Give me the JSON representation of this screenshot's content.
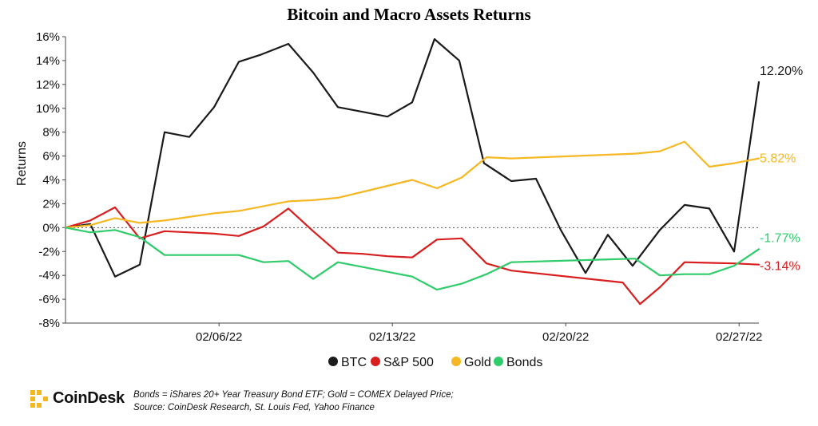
{
  "chart_data": {
    "type": "line",
    "title": "Bitcoin and Macro Assets Returns",
    "xlabel": "",
    "ylabel": "Returns",
    "ylim": [
      -8,
      16
    ],
    "y_unit": "%",
    "y_ticks": [
      "16%",
      "14%",
      "12%",
      "10%",
      "8%",
      "6%",
      "4%",
      "2%",
      "0%",
      "-2%",
      "-4%",
      "-6%",
      "-8%"
    ],
    "x_ticks": [
      "02/06/22",
      "02/13/22",
      "02/20/22",
      "02/27/22"
    ],
    "x_tick_positions": [
      6.2,
      13.2,
      20.2,
      27.2
    ],
    "xlim": [
      0,
      28
    ],
    "zero_line": "dotted",
    "legend_position": "bottom-center",
    "series": [
      {
        "name": "BTC",
        "color": "#1a1a1a",
        "end_label": "12.20%",
        "x": [
          0,
          1,
          2,
          3,
          4,
          5,
          6,
          7,
          7.9,
          9,
          10,
          11,
          12,
          13,
          14,
          14.9,
          15.9,
          16.9,
          18,
          19,
          20,
          21,
          21.9,
          22.9,
          24,
          25,
          26,
          27,
          28
        ],
        "values": [
          0,
          0.3,
          -4.1,
          -3.1,
          8.0,
          7.6,
          10.1,
          13.9,
          14.5,
          15.4,
          13.0,
          10.1,
          9.7,
          9.3,
          10.5,
          15.8,
          14.0,
          5.4,
          3.9,
          4.1,
          -0.2,
          -3.8,
          -0.6,
          -3.2,
          -0.2,
          1.9,
          1.6,
          -2.0,
          12.2
        ]
      },
      {
        "name": "S&P 500",
        "color": "#d81e1e",
        "end_label": "-3.14%",
        "x": [
          0,
          1,
          2,
          3,
          4,
          5,
          6,
          7,
          8,
          9,
          10,
          11,
          12,
          13,
          14,
          15,
          16,
          17,
          18,
          22.5,
          23.2,
          24,
          25,
          27,
          28
        ],
        "values": [
          0,
          0.6,
          1.7,
          -0.9,
          -0.3,
          -0.4,
          -0.5,
          -0.7,
          0.1,
          1.6,
          -0.3,
          -2.1,
          -2.2,
          -2.4,
          -2.5,
          -1.0,
          -0.9,
          -3.0,
          -3.6,
          -4.6,
          -6.4,
          -5.0,
          -2.9,
          -3.0,
          -3.1
        ]
      },
      {
        "name": "Gold",
        "color": "#f5b822",
        "end_label": "5.82%",
        "x": [
          0,
          1,
          2,
          3,
          4,
          5,
          6,
          7,
          8,
          9,
          10,
          11,
          12,
          13,
          14,
          15,
          16,
          17,
          18,
          23,
          24,
          25,
          26,
          27,
          28
        ],
        "values": [
          0,
          0.2,
          0.8,
          0.4,
          0.6,
          0.9,
          1.2,
          1.4,
          1.8,
          2.2,
          2.3,
          2.5,
          3.0,
          3.5,
          4.0,
          3.3,
          4.2,
          5.9,
          5.8,
          6.2,
          6.4,
          7.2,
          5.1,
          5.4,
          5.8
        ]
      },
      {
        "name": "Bonds",
        "color": "#2ecc6a",
        "end_label": "-1.77%",
        "x": [
          0,
          1,
          2,
          3,
          4,
          5,
          6,
          7,
          8,
          9,
          10,
          11,
          12,
          13,
          14,
          15,
          16,
          17,
          18,
          23,
          24,
          25,
          26,
          27,
          28
        ],
        "values": [
          0,
          -0.4,
          -0.2,
          -0.8,
          -2.3,
          -2.3,
          -2.3,
          -2.3,
          -2.9,
          -2.8,
          -4.3,
          -2.9,
          -3.3,
          -3.7,
          -4.1,
          -5.2,
          -4.7,
          -3.9,
          -2.9,
          -2.6,
          -4.0,
          -3.9,
          -3.9,
          -3.2,
          -1.8
        ]
      }
    ]
  },
  "footer": {
    "brand": "CoinDesk",
    "note_line1": "Bonds = iShares 20+ Year Treasury Bond ETF; Gold = COMEX Delayed Price;",
    "note_line2": "Source: CoinDesk Research, St. Louis Fed, Yahoo Finance"
  }
}
